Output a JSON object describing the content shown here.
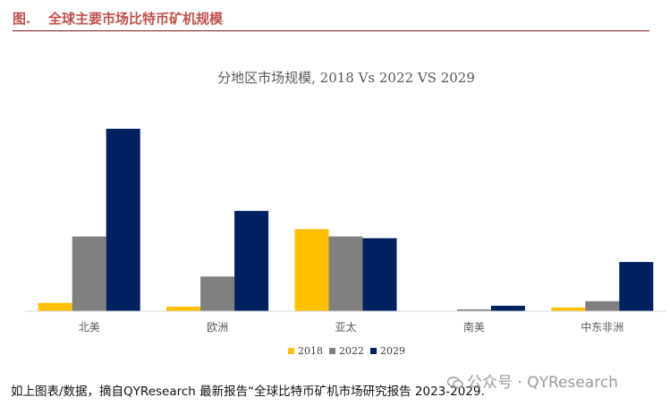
{
  "figure": {
    "label": "图.",
    "title": "全球主要市场比特币矿机规模"
  },
  "chart_data": {
    "type": "bar",
    "title": "分地区市场规模, 2018 Vs 2022 VS 2029",
    "categories": [
      "北美",
      "欧洲",
      "亚太",
      "南美",
      "中东非洲"
    ],
    "series": [
      {
        "name": "2018",
        "color": "#ffc000",
        "values": [
          4.5,
          2.5,
          45,
          0,
          2
        ]
      },
      {
        "name": "2022",
        "color": "#808080",
        "values": [
          41,
          19,
          41,
          1,
          5.5
        ]
      },
      {
        "name": "2029",
        "color": "#002060",
        "values": [
          100,
          55,
          40,
          3,
          27
        ]
      }
    ],
    "ylim": [
      0,
      100
    ],
    "legend_position": "bottom",
    "grid": false
  },
  "footnote": "如上图表/数据，摘自QYResearch 最新报告“全球比特币矿机市场研究报告 2023-2029.",
  "watermark": "公众号 · QYResearch"
}
